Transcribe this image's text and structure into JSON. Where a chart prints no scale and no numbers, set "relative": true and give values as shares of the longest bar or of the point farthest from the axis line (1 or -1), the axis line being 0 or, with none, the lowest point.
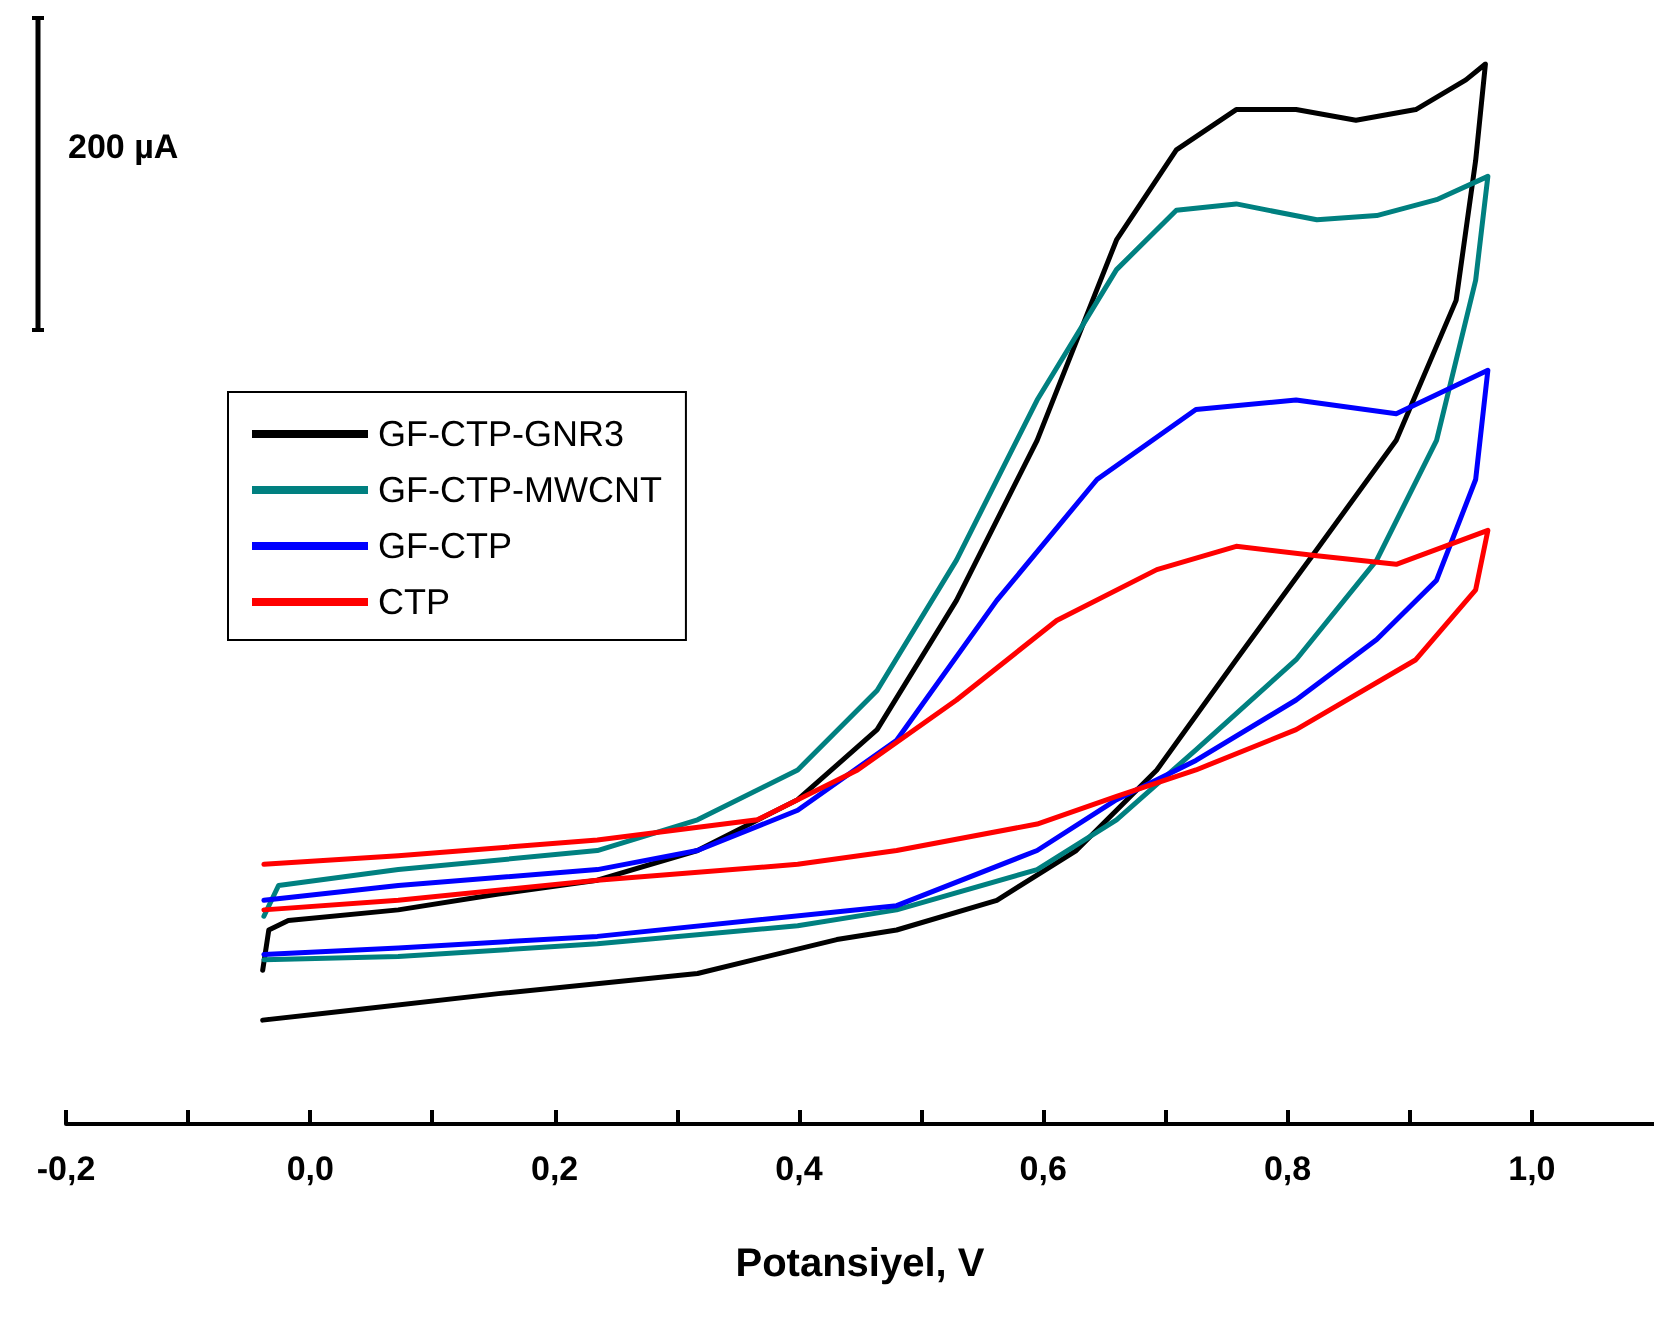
{
  "chart_data": {
    "type": "line",
    "relative": true,
    "xlabel": "Potansiyel, V",
    "annotations": [
      "200 µA"
    ],
    "xlim": [
      -0.2,
      1.1
    ],
    "xticks": [
      {
        "value": -0.2,
        "label": "-0,2"
      },
      {
        "value": -0.1,
        "label": null
      },
      {
        "value": 0,
        "label": "0,0"
      },
      {
        "value": 0.1,
        "label": null
      },
      {
        "value": 0.2,
        "label": "0,2"
      },
      {
        "value": 0.3,
        "label": null
      },
      {
        "value": 0.4,
        "label": "0,4"
      },
      {
        "value": 0.5,
        "label": null
      },
      {
        "value": 0.6,
        "label": "0,6"
      },
      {
        "value": 0.7,
        "label": null
      },
      {
        "value": 0.8,
        "label": "0,8"
      },
      {
        "value": 0.9,
        "label": null
      },
      {
        "value": 1.0,
        "label": "1,0"
      }
    ],
    "legend": "left",
    "grid": false,
    "marker": "none",
    "line_style": "solid",
    "series": [
      {
        "name": "GF-CTP-GNR3",
        "color": "#000000",
        "x": [
          -0.039,
          -0.034,
          -0.018,
          0.072,
          0.154,
          0.235,
          0.317,
          0.399,
          0.464,
          0.529,
          0.595,
          0.66,
          0.709,
          0.758,
          0.807,
          0.856,
          0.905,
          0.946,
          0.962,
          0.954,
          0.938,
          0.889,
          0.824,
          0.758,
          0.693,
          0.627,
          0.562,
          0.48,
          0.431,
          0.317,
          0.154,
          0.039,
          -0.039
        ],
        "values": [
          0.145,
          0.183,
          0.192,
          0.202,
          0.217,
          0.23,
          0.258,
          0.306,
          0.372,
          0.494,
          0.645,
          0.834,
          0.919,
          0.957,
          0.957,
          0.947,
          0.957,
          0.985,
          1,
          0.909,
          0.777,
          0.645,
          0.542,
          0.438,
          0.334,
          0.258,
          0.211,
          0.183,
          0.174,
          0.142,
          0.123,
          0.108,
          0.098
        ]
      },
      {
        "name": "GF-CTP-MWCNT",
        "color": "#008080",
        "x": [
          -0.038,
          -0.026,
          0.072,
          0.235,
          0.317,
          0.399,
          0.464,
          0.529,
          0.595,
          0.66,
          0.709,
          0.758,
          0.824,
          0.873,
          0.922,
          0.964,
          0.954,
          0.922,
          0.873,
          0.807,
          0.725,
          0.66,
          0.595,
          0.48,
          0.399,
          0.235,
          0.072,
          -0.038
        ],
        "values": [
          0.196,
          0.225,
          0.24,
          0.258,
          0.287,
          0.334,
          0.409,
          0.532,
          0.683,
          0.806,
          0.862,
          0.868,
          0.853,
          0.857,
          0.872,
          0.894,
          0.796,
          0.645,
          0.532,
          0.438,
          0.353,
          0.287,
          0.24,
          0.202,
          0.187,
          0.17,
          0.158,
          0.155
        ]
      },
      {
        "name": "GF-CTP",
        "color": "#0000ff",
        "x": [
          -0.038,
          0.072,
          0.235,
          0.317,
          0.399,
          0.48,
          0.562,
          0.644,
          0.725,
          0.807,
          0.889,
          0.964,
          0.954,
          0.922,
          0.873,
          0.807,
          0.725,
          0.66,
          0.595,
          0.48,
          0.235,
          0.072,
          -0.038
        ],
        "values": [
          0.211,
          0.225,
          0.24,
          0.258,
          0.296,
          0.362,
          0.494,
          0.608,
          0.674,
          0.683,
          0.67,
          0.711,
          0.608,
          0.513,
          0.457,
          0.4,
          0.343,
          0.306,
          0.258,
          0.206,
          0.177,
          0.166,
          0.16
        ]
      },
      {
        "name": "CTP",
        "color": "#ff0000",
        "x": [
          -0.038,
          0.072,
          0.235,
          0.366,
          0.448,
          0.529,
          0.611,
          0.693,
          0.758,
          0.824,
          0.889,
          0.964,
          0.954,
          0.905,
          0.807,
          0.725,
          0.66,
          0.595,
          0.48,
          0.399,
          0.235,
          0.072,
          -0.038
        ],
        "values": [
          0.245,
          0.253,
          0.268,
          0.287,
          0.334,
          0.4,
          0.475,
          0.523,
          0.545,
          0.536,
          0.528,
          0.56,
          0.504,
          0.438,
          0.372,
          0.334,
          0.309,
          0.283,
          0.258,
          0.245,
          0.23,
          0.211,
          0.202
        ]
      }
    ]
  }
}
